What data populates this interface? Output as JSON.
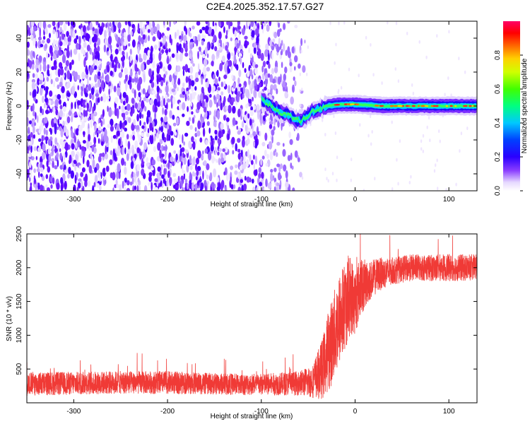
{
  "title": "C2E4.2025.352.17.57.G27",
  "chart_data": [
    {
      "type": "heatmap",
      "xlabel": "Height of straight line (km)",
      "ylabel": "Frequency (Hz)",
      "xlim": [
        -350,
        130
      ],
      "ylim": [
        -50,
        50
      ],
      "x_ticks": [
        -300,
        -200,
        -100,
        0,
        100
      ],
      "y_ticks": [
        -40,
        -20,
        0,
        20,
        40
      ],
      "grid": false,
      "colorbar": {
        "label": "Normalized spectral amplitude",
        "range": [
          0,
          1
        ],
        "ticks": [
          "0.0",
          "0.2",
          "0.4",
          "0.6",
          "0.8"
        ],
        "colormap": "rainbow (white to purple to blue to cyan to green to yellow to red to pink)"
      },
      "description_values": {
        "noise_region_x": [
          -350,
          -50
        ],
        "signal_trace": [
          {
            "x": -100,
            "y": 4
          },
          {
            "x": -85,
            "y": -2
          },
          {
            "x": -70,
            "y": -6
          },
          {
            "x": -58,
            "y": -9
          },
          {
            "x": -45,
            "y": -3
          },
          {
            "x": -30,
            "y": 0
          },
          {
            "x": -15,
            "y": 1
          },
          {
            "x": 0,
            "y": 1
          },
          {
            "x": 30,
            "y": 0
          },
          {
            "x": 80,
            "y": 0
          },
          {
            "x": 130,
            "y": 0
          }
        ]
      }
    },
    {
      "type": "line",
      "xlabel": "Height of straight line (km)",
      "ylabel": "SNR (10 * v/v)",
      "xlim": [
        -350,
        130
      ],
      "ylim": [
        0,
        2500
      ],
      "x_ticks": [
        -300,
        -200,
        -100,
        0,
        100
      ],
      "y_ticks": [
        500,
        1000,
        1500,
        2000,
        2500
      ],
      "series_color": "#f03a36",
      "series": [
        {
          "x": [
            -350,
            -300,
            -250,
            -200,
            -150,
            -100,
            -60,
            -45,
            -35,
            -25,
            -15,
            -5,
            0,
            5,
            15,
            25,
            40,
            60,
            80,
            100,
            120,
            130
          ],
          "y_mean": [
            280,
            290,
            300,
            300,
            280,
            270,
            290,
            320,
            500,
            900,
            1300,
            1600,
            1500,
            1700,
            1800,
            1900,
            1950,
            2000,
            2000,
            2000,
            2000,
            2000
          ],
          "y_spread": [
            180,
            170,
            170,
            170,
            160,
            160,
            180,
            250,
            450,
            650,
            700,
            600,
            500,
            450,
            300,
            250,
            200,
            200,
            200,
            200,
            200,
            200
          ]
        }
      ]
    }
  ]
}
